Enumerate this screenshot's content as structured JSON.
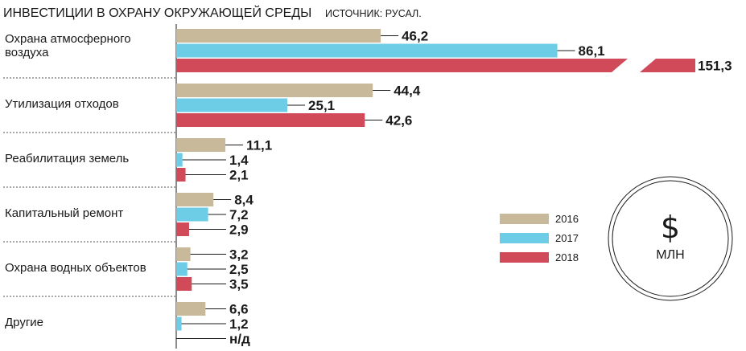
{
  "chart_data": {
    "type": "bar",
    "orientation": "horizontal",
    "title": "ИНВЕСТИЦИИ В ОХРАНУ ОКРУЖАЮЩЕЙ СРЕДЫ",
    "source": "ИСТОЧНИК: РУСАЛ.",
    "unit_symbol": "$",
    "unit_label": "МЛН",
    "categories": [
      "Охрана атмосферного воздуха",
      "Утилизация отходов",
      "Реабилитация земель",
      "Капитальный ремонт",
      "Охрана водных объектов",
      "Другие"
    ],
    "series": [
      {
        "name": "2016",
        "color": "#c8b99a",
        "values": [
          46.2,
          44.4,
          11.1,
          8.4,
          3.2,
          6.6
        ]
      },
      {
        "name": "2017",
        "color": "#6dcde6",
        "values": [
          86.1,
          25.1,
          1.4,
          7.2,
          2.5,
          1.2
        ]
      },
      {
        "name": "2018",
        "color": "#d04a5a",
        "values": [
          151.3,
          42.6,
          2.1,
          2.9,
          3.5,
          null
        ]
      }
    ],
    "value_labels": [
      [
        "46,2",
        "86,1",
        "151,3"
      ],
      [
        "44,4",
        "25,1",
        "42,6"
      ],
      [
        "11,1",
        "1,4",
        "2,1"
      ],
      [
        "8,4",
        "7,2",
        "2,9"
      ],
      [
        "3,2",
        "2,5",
        "3,5"
      ],
      [
        "6,6",
        "1,2",
        "н/д"
      ]
    ],
    "axis_break": {
      "series": "2018",
      "category": "Охрана атмосферного воздуха"
    },
    "legend_position": "right",
    "grid": false
  }
}
